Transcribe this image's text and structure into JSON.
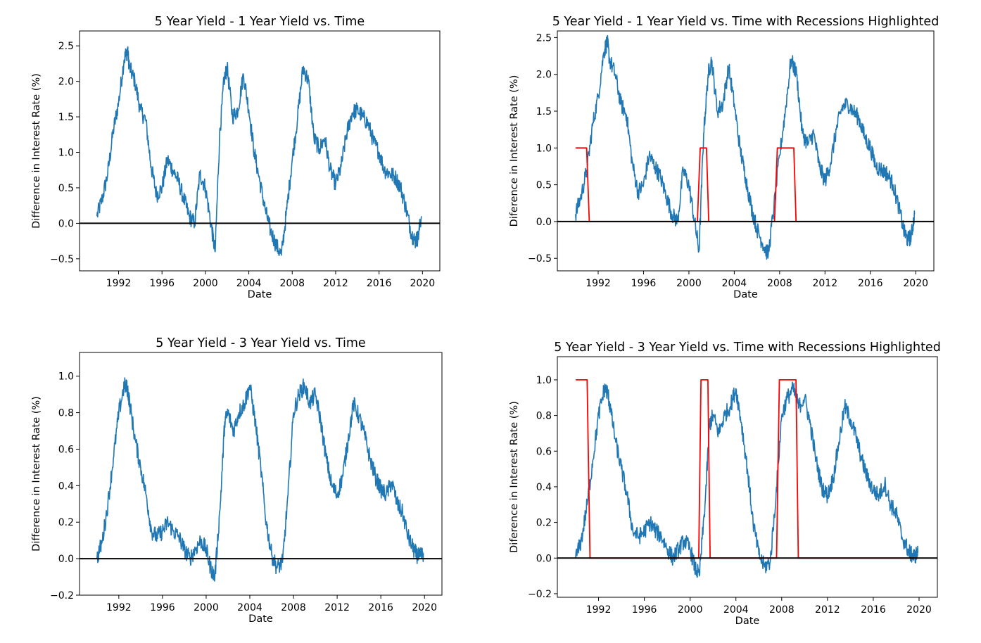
{
  "chart_data": [
    {
      "type": "line",
      "title": "5 Year Yield - 1 Year Yield vs. Time",
      "xlabel": "Date",
      "ylabel": "Difference in Interest Rate (%)",
      "xticks": [
        "1992",
        "1996",
        "2000",
        "2004",
        "2008",
        "2012",
        "2016",
        "2020"
      ],
      "yticks": [
        "−0.5",
        "0.0",
        "0.5",
        "1.0",
        "1.5",
        "2.0",
        "2.5"
      ],
      "xlim": [
        1988.4,
        2021.6
      ],
      "ylim": [
        -0.67,
        2.71
      ],
      "reference_line": 0,
      "series": [
        {
          "color": "#1f77b4",
          "x": [
            1990.0,
            1990.5,
            1991.0,
            1991.5,
            1992.0,
            1992.5,
            1992.8,
            1993.0,
            1993.5,
            1994.0,
            1994.5,
            1995.0,
            1995.5,
            1996.0,
            1996.5,
            1997.0,
            1997.5,
            1998.0,
            1998.5,
            1999.0,
            1999.5,
            2000.0,
            2000.5,
            2000.9,
            2001.3,
            2001.7,
            2002.0,
            2002.5,
            2003.0,
            2003.5,
            2004.0,
            2004.5,
            2005.0,
            2005.5,
            2006.0,
            2006.5,
            2007.0,
            2007.5,
            2008.0,
            2008.5,
            2009.0,
            2009.5,
            2010.0,
            2010.5,
            2011.0,
            2011.5,
            2012.0,
            2012.5,
            2013.0,
            2013.5,
            2014.0,
            2014.5,
            2015.0,
            2015.5,
            2016.0,
            2016.5,
            2017.0,
            2017.5,
            2018.0,
            2018.5,
            2019.0,
            2019.3,
            2019.6,
            2019.9
          ],
          "y": [
            0.1,
            0.35,
            0.7,
            1.3,
            1.7,
            2.3,
            2.45,
            2.2,
            2.0,
            1.6,
            1.45,
            0.8,
            0.4,
            0.5,
            0.9,
            0.75,
            0.6,
            0.35,
            0.1,
            0.0,
            0.7,
            0.5,
            0.0,
            -0.4,
            1.2,
            2.0,
            2.2,
            1.5,
            1.6,
            2.1,
            1.6,
            1.0,
            0.6,
            0.2,
            -0.1,
            -0.3,
            -0.45,
            0.2,
            0.9,
            1.5,
            2.2,
            2.0,
            1.2,
            1.05,
            1.2,
            0.75,
            0.55,
            0.8,
            1.25,
            1.55,
            1.6,
            1.5,
            1.4,
            1.15,
            1.0,
            0.75,
            0.7,
            0.65,
            0.5,
            0.2,
            -0.15,
            -0.25,
            -0.2,
            0.1
          ]
        }
      ]
    },
    {
      "type": "line",
      "title": "5 Year Yield - 1 Year Yield vs. Time with Recessions Highlighted",
      "xlabel": "Date",
      "ylabel": "Diference in Interest Rate (%)",
      "xticks": [
        "1992",
        "1996",
        "2000",
        "2004",
        "2008",
        "2012",
        "2016",
        "2020"
      ],
      "yticks": [
        "−0.5",
        "0.0",
        "0.5",
        "1.0",
        "1.5",
        "2.0",
        "2.5"
      ],
      "xlim": [
        1988.4,
        2021.6
      ],
      "ylim": [
        -0.67,
        2.59
      ],
      "reference_line": 0,
      "series": [
        {
          "color": "#1f77b4",
          "x": [
            1990.0,
            1990.5,
            1991.0,
            1991.5,
            1992.0,
            1992.5,
            1992.8,
            1993.0,
            1993.5,
            1994.0,
            1994.5,
            1995.0,
            1995.5,
            1996.0,
            1996.5,
            1997.0,
            1997.5,
            1998.0,
            1998.5,
            1999.0,
            1999.5,
            2000.0,
            2000.5,
            2000.9,
            2001.3,
            2001.7,
            2002.0,
            2002.5,
            2003.0,
            2003.5,
            2004.0,
            2004.5,
            2005.0,
            2005.5,
            2006.0,
            2006.5,
            2007.0,
            2007.5,
            2008.0,
            2008.5,
            2009.0,
            2009.5,
            2010.0,
            2010.5,
            2011.0,
            2011.5,
            2012.0,
            2012.5,
            2013.0,
            2013.5,
            2014.0,
            2014.5,
            2015.0,
            2015.5,
            2016.0,
            2016.5,
            2017.0,
            2017.5,
            2018.0,
            2018.5,
            2019.0,
            2019.3,
            2019.6,
            2019.9
          ],
          "y": [
            0.1,
            0.35,
            0.7,
            1.3,
            1.7,
            2.3,
            2.45,
            2.2,
            2.0,
            1.6,
            1.45,
            0.8,
            0.4,
            0.5,
            0.9,
            0.75,
            0.6,
            0.35,
            0.1,
            0.0,
            0.7,
            0.5,
            0.0,
            -0.4,
            1.2,
            2.0,
            2.2,
            1.5,
            1.6,
            2.1,
            1.6,
            1.0,
            0.6,
            0.2,
            -0.1,
            -0.3,
            -0.45,
            0.2,
            0.9,
            1.5,
            2.2,
            2.0,
            1.2,
            1.05,
            1.2,
            0.75,
            0.55,
            0.8,
            1.25,
            1.55,
            1.6,
            1.5,
            1.4,
            1.15,
            1.0,
            0.75,
            0.7,
            0.65,
            0.5,
            0.2,
            -0.15,
            -0.25,
            -0.2,
            0.1
          ]
        },
        {
          "color": "#ff0000",
          "x": [
            1990.0,
            1990.98,
            1991.22,
            2000.75,
            2001.0,
            2001.55,
            2001.75,
            2007.55,
            2007.8,
            2009.25,
            2009.45,
            2019.9
          ],
          "y": [
            1.0,
            1.0,
            0.0,
            0.0,
            1.0,
            1.0,
            0.0,
            0.0,
            1.0,
            1.0,
            0.0,
            0.0
          ]
        }
      ]
    },
    {
      "type": "line",
      "title": "5 Year Yield - 3 Year Yield vs. Time",
      "xlabel": "Date",
      "ylabel": "Difference in Interest Rate (%)",
      "xticks": [
        "1992",
        "1996",
        "2000",
        "2004",
        "2008",
        "2012",
        "2016",
        "2020"
      ],
      "yticks": [
        "−0.2",
        "0.0",
        "0.2",
        "0.4",
        "0.6",
        "0.8",
        "1.0"
      ],
      "xlim": [
        1988.4,
        2021.6
      ],
      "ylim": [
        -0.2,
        1.13
      ],
      "reference_line": 0,
      "series": [
        {
          "color": "#1f77b4",
          "x": [
            1990.0,
            1990.5,
            1991.0,
            1991.5,
            1992.0,
            1992.5,
            1992.8,
            1993.0,
            1993.5,
            1994.0,
            1994.5,
            1995.0,
            1995.5,
            1996.0,
            1996.5,
            1997.0,
            1997.5,
            1998.0,
            1998.5,
            1999.0,
            1999.5,
            2000.0,
            2000.4,
            2000.8,
            2001.3,
            2001.7,
            2002.0,
            2002.5,
            2003.0,
            2003.5,
            2004.0,
            2004.5,
            2005.0,
            2005.5,
            2006.0,
            2006.5,
            2007.0,
            2007.5,
            2008.0,
            2008.5,
            2009.0,
            2009.5,
            2010.0,
            2010.5,
            2011.0,
            2011.5,
            2012.0,
            2012.5,
            2013.0,
            2013.5,
            2014.0,
            2014.5,
            2015.0,
            2015.5,
            2016.0,
            2016.5,
            2017.0,
            2017.5,
            2018.0,
            2018.5,
            2019.0,
            2019.3,
            2019.6,
            2019.9
          ],
          "y": [
            0.0,
            0.1,
            0.3,
            0.55,
            0.8,
            0.95,
            0.93,
            0.85,
            0.65,
            0.5,
            0.35,
            0.15,
            0.12,
            0.15,
            0.2,
            0.15,
            0.12,
            0.05,
            0.0,
            0.05,
            0.1,
            0.05,
            -0.05,
            -0.1,
            0.3,
            0.75,
            0.8,
            0.7,
            0.8,
            0.85,
            0.95,
            0.75,
            0.5,
            0.2,
            0.02,
            -0.05,
            -0.02,
            0.35,
            0.8,
            0.9,
            0.95,
            0.85,
            0.9,
            0.75,
            0.55,
            0.4,
            0.35,
            0.45,
            0.65,
            0.85,
            0.78,
            0.68,
            0.55,
            0.45,
            0.38,
            0.35,
            0.42,
            0.3,
            0.25,
            0.12,
            0.05,
            0.02,
            0.01,
            0.03
          ]
        }
      ]
    },
    {
      "type": "line",
      "title": "5 Year Yield - 3 Year Yield vs. Time with Recessions Highlighted",
      "xlabel": "Date",
      "ylabel": "Diference in Interest Rate (%)",
      "xticks": [
        "1992",
        "1996",
        "2000",
        "2004",
        "2008",
        "2012",
        "2016",
        "2020"
      ],
      "yticks": [
        "−0.2",
        "0.0",
        "0.2",
        "0.4",
        "0.6",
        "0.8",
        "1.0"
      ],
      "xlim": [
        1988.4,
        2021.6
      ],
      "ylim": [
        -0.22,
        1.13
      ],
      "reference_line": 0,
      "series": [
        {
          "color": "#1f77b4",
          "x": [
            1990.0,
            1990.5,
            1991.0,
            1991.5,
            1992.0,
            1992.5,
            1992.8,
            1993.0,
            1993.5,
            1994.0,
            1994.5,
            1995.0,
            1995.5,
            1996.0,
            1996.5,
            1997.0,
            1997.5,
            1998.0,
            1998.5,
            1999.0,
            1999.5,
            2000.0,
            2000.4,
            2000.8,
            2001.3,
            2001.7,
            2002.0,
            2002.5,
            2003.0,
            2003.5,
            2004.0,
            2004.5,
            2005.0,
            2005.5,
            2006.0,
            2006.5,
            2007.0,
            2007.5,
            2008.0,
            2008.5,
            2009.0,
            2009.5,
            2010.0,
            2010.5,
            2011.0,
            2011.5,
            2012.0,
            2012.5,
            2013.0,
            2013.5,
            2014.0,
            2014.5,
            2015.0,
            2015.5,
            2016.0,
            2016.5,
            2017.0,
            2017.5,
            2018.0,
            2018.5,
            2019.0,
            2019.3,
            2019.6,
            2019.9
          ],
          "y": [
            0.0,
            0.1,
            0.3,
            0.55,
            0.8,
            0.95,
            0.93,
            0.85,
            0.65,
            0.5,
            0.35,
            0.15,
            0.12,
            0.15,
            0.2,
            0.15,
            0.12,
            0.05,
            0.0,
            0.05,
            0.1,
            0.05,
            -0.05,
            -0.1,
            0.3,
            0.75,
            0.8,
            0.7,
            0.8,
            0.85,
            0.95,
            0.75,
            0.5,
            0.2,
            0.02,
            -0.05,
            -0.02,
            0.35,
            0.8,
            0.9,
            0.95,
            0.85,
            0.9,
            0.75,
            0.55,
            0.4,
            0.35,
            0.45,
            0.65,
            0.85,
            0.78,
            0.68,
            0.55,
            0.45,
            0.38,
            0.35,
            0.42,
            0.3,
            0.25,
            0.12,
            0.05,
            0.02,
            0.01,
            0.03
          ]
        },
        {
          "color": "#ff0000",
          "x": [
            1990.0,
            1991.0,
            1991.25,
            2000.75,
            2000.95,
            2001.55,
            2001.75,
            2007.55,
            2007.8,
            2009.25,
            2009.45,
            2019.9
          ],
          "y": [
            1.0,
            1.0,
            0.0,
            0.0,
            1.0,
            1.0,
            0.0,
            0.0,
            1.0,
            1.0,
            0.0,
            0.0
          ]
        }
      ]
    }
  ]
}
